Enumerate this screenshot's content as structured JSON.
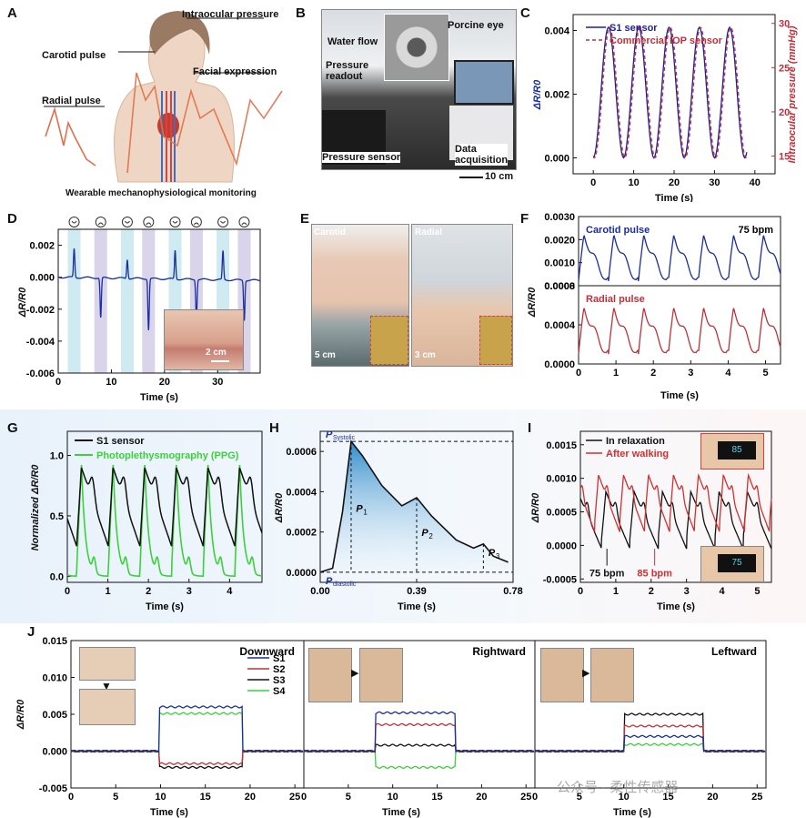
{
  "panels": {
    "A": {
      "letter": "A",
      "labels": {
        "iop": "Intraocular pressure",
        "carotid": "Carotid  pulse",
        "facial": "Facial expression",
        "radial": "Radial pulse",
        "caption": "Wearable mechanophysiological monitoring"
      }
    },
    "B": {
      "letter": "B",
      "labels": {
        "water": "Water flow",
        "eye": "Porcine eye",
        "readout": "Pressure\nreadout",
        "sensor": "Pressure sensor",
        "daq": "Data\nacquisition",
        "scale": "10 cm"
      }
    },
    "C": {
      "letter": "C"
    },
    "D": {
      "letter": "D",
      "scale": "2 cm"
    },
    "E": {
      "letter": "E",
      "labels": {
        "carotid": "Carotid",
        "radial": "Radial",
        "scale1": "5 cm",
        "scale2": "3 cm"
      }
    },
    "F": {
      "letter": "F"
    },
    "G": {
      "letter": "G"
    },
    "H": {
      "letter": "H"
    },
    "I": {
      "letter": "I",
      "readouts": {
        "top": "85",
        "bottom": "75"
      }
    },
    "J": {
      "letter": "J"
    }
  },
  "chart_data": [
    {
      "id": "C",
      "type": "line",
      "xlabel": "Time (s)",
      "ylabel": "ΔR/R0",
      "y2label": "Intraocular pressure (mmHg)",
      "xlim": [
        -5,
        45
      ],
      "ylim": [
        -0.0005,
        0.0045
      ],
      "y2lim": [
        13,
        31
      ],
      "xticks": [
        0,
        10,
        20,
        30,
        40
      ],
      "yticks": [
        0.0,
        0.002,
        0.004
      ],
      "y2ticks": [
        15,
        20,
        25,
        30
      ],
      "series": [
        {
          "name": "S1 sensor",
          "color": "#1f1f9a",
          "period": 7.5,
          "offset": 0,
          "min": 0.0,
          "max": 0.0041
        },
        {
          "name": "Commercial IOP sensor",
          "color": "#c0303a",
          "period": 7.5,
          "offset": 0.3,
          "min": 0.0,
          "max": 0.0041,
          "dashed": true
        }
      ]
    },
    {
      "id": "D",
      "type": "line",
      "xlabel": "Time (s)",
      "ylabel": "ΔR/R0",
      "xlim": [
        0,
        38
      ],
      "ylim": [
        -0.006,
        0.003
      ],
      "xticks": [
        0,
        10,
        20,
        30
      ],
      "yticks": [
        0.002,
        0.0,
        -0.002,
        -0.004,
        -0.006
      ],
      "expressions": [
        "happy",
        "sad",
        "happy",
        "sad",
        "happy",
        "sad",
        "happy",
        "sad"
      ],
      "events": [
        {
          "t": 3,
          "amp": 0.0018
        },
        {
          "t": 8,
          "amp": -0.0025
        },
        {
          "t": 13,
          "amp": 0.0012
        },
        {
          "t": 17,
          "amp": -0.0032
        },
        {
          "t": 22,
          "amp": 0.0018
        },
        {
          "t": 26,
          "amp": -0.0024
        },
        {
          "t": 31,
          "amp": 0.0018
        },
        {
          "t": 35,
          "amp": -0.0025
        }
      ],
      "color": "#1a2ea0"
    },
    {
      "id": "F",
      "type": "line",
      "xlabel": "Time (s)",
      "ylabel": "ΔR/R0",
      "xlim": [
        0,
        5.4
      ],
      "xticks": [
        0,
        1,
        2,
        3,
        4,
        5
      ],
      "annotation": "75 bpm",
      "subplots": [
        {
          "name": "Carotid pulse",
          "color": "#1a2ea0",
          "ylim": [
            0,
            0.003
          ],
          "yticks": [
            0,
            0.001,
            0.002,
            0.003
          ],
          "peak": 0.0021,
          "base": 0.0002
        },
        {
          "name": "Radial pulse",
          "color": "#c0303a",
          "ylim": [
            0,
            0.0008
          ],
          "yticks": [
            0,
            0.0004,
            0.0008
          ],
          "peak": 0.00055,
          "base": 0.0001
        }
      ]
    },
    {
      "id": "G",
      "type": "line",
      "xlabel": "Time (s)",
      "ylabel": "Normalized ΔR/R0",
      "xlim": [
        0,
        4.8
      ],
      "ylim": [
        -0.05,
        1.2
      ],
      "xticks": [
        0,
        1,
        2,
        3,
        4
      ],
      "yticks": [
        0.0,
        0.5,
        1.0
      ],
      "series": [
        {
          "name": "S1 sensor",
          "color": "#111111"
        },
        {
          "name": "Photoplethysmography (PPG)",
          "color": "#3bd13b"
        }
      ]
    },
    {
      "id": "H",
      "type": "area",
      "xlabel": "Time (s)",
      "ylabel": "ΔR/R0",
      "xlim": [
        0,
        0.78
      ],
      "ylim": [
        -5e-05,
        0.0007
      ],
      "xticks": [
        0.0,
        0.39,
        0.78
      ],
      "yticks": [
        0.0,
        0.0002,
        0.0004,
        0.0006
      ],
      "annotations": {
        "systolic": "Systolic",
        "diastolic": "diastolic",
        "p1": "1",
        "p2": "2",
        "p3": "3"
      },
      "points": [
        [
          0,
          0
        ],
        [
          0.05,
          2e-05
        ],
        [
          0.09,
          0.0003
        ],
        [
          0.125,
          0.00065
        ],
        [
          0.17,
          0.00058
        ],
        [
          0.25,
          0.00043
        ],
        [
          0.33,
          0.00033
        ],
        [
          0.39,
          0.00037
        ],
        [
          0.45,
          0.00028
        ],
        [
          0.55,
          0.00016
        ],
        [
          0.62,
          0.00012
        ],
        [
          0.66,
          0.00014
        ],
        [
          0.7,
          8e-05
        ],
        [
          0.76,
          5e-05
        ]
      ]
    },
    {
      "id": "I",
      "type": "line",
      "xlabel": "Time (s)",
      "ylabel": "ΔR/R0",
      "xlim": [
        0,
        5.4
      ],
      "ylim": [
        -0.00055,
        0.0017
      ],
      "xticks": [
        0,
        1,
        2,
        3,
        4,
        5
      ],
      "yticks": [
        -0.0005,
        0.0,
        0.0005,
        0.001,
        0.0015
      ],
      "series": [
        {
          "name": "In relaxation",
          "color": "#111111",
          "bpm": 75
        },
        {
          "name": "After walking",
          "color": "#d03030",
          "bpm": 85
        }
      ],
      "arrows": [
        {
          "text": "75 bpm",
          "color": "#111111"
        },
        {
          "text": "85 bpm",
          "color": "#d03030"
        }
      ]
    },
    {
      "id": "J",
      "type": "line",
      "xlabel": "Time (s)",
      "ylabel": "ΔR/R0",
      "ylim": [
        -0.005,
        0.015
      ],
      "yticks": [
        0.015,
        0.01,
        0.005,
        0.0,
        -0.005
      ],
      "subplots": [
        {
          "name": "Downward",
          "xlim": [
            0,
            26
          ],
          "xticks": [
            0,
            5,
            10,
            15,
            20,
            25
          ],
          "on": [
            9.8,
            19.2
          ],
          "levels": {
            "S1": 0.006,
            "S2": -0.0017,
            "S3": -0.0022,
            "S4": 0.0051
          }
        },
        {
          "name": "Rightward",
          "xlim": [
            0,
            26
          ],
          "xticks": [
            0,
            5,
            10,
            15,
            20,
            25
          ],
          "on": [
            8,
            17
          ],
          "levels": {
            "S1": 0.0052,
            "S2": 0.0036,
            "S3": 0.0008,
            "S4": -0.0022
          }
        },
        {
          "name": "Leftward",
          "xlim": [
            0,
            26
          ],
          "xticks": [
            0,
            5,
            10,
            15,
            20,
            25
          ],
          "on": [
            10,
            19
          ],
          "levels": {
            "S1": 0.002,
            "S2": 0.0034,
            "S3": 0.005,
            "S4": 0.0009
          }
        }
      ],
      "legend": [
        {
          "name": "S1",
          "color": "#1a2ea0"
        },
        {
          "name": "S2",
          "color": "#c0303a"
        },
        {
          "name": "S3",
          "color": "#111111"
        },
        {
          "name": "S4",
          "color": "#3bd13b"
        }
      ]
    }
  ],
  "watermark": "公众号 · 柔性传感器"
}
